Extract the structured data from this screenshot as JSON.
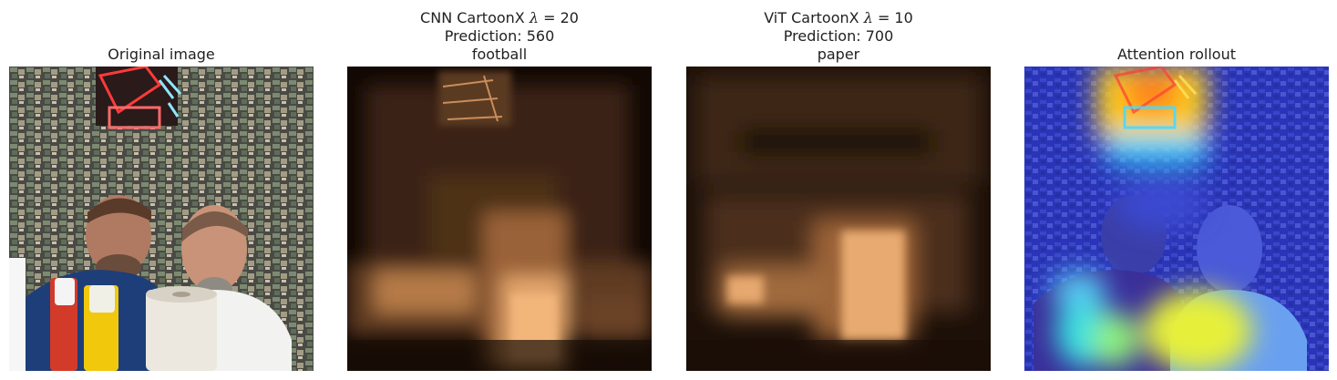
{
  "panels": [
    {
      "id": "original",
      "title_lines": [
        "Original image"
      ],
      "image": "photo-two-men-at-table",
      "colormap": "none"
    },
    {
      "id": "cnn",
      "title_lines": [
        "CNN CartoonX ",
        "Prediction: 560",
        "football"
      ],
      "lambda_symbol": "λ",
      "lambda_value": "= 20",
      "image": "cnn-cartoonx-explanation-map",
      "colormap": "copper"
    },
    {
      "id": "vit",
      "title_lines": [
        "ViT CartoonX ",
        "Prediction: 700",
        "paper"
      ],
      "lambda_symbol": "λ",
      "lambda_value": "= 10",
      "image": "vit-cartoonx-explanation-map",
      "colormap": "copper"
    },
    {
      "id": "rollout",
      "title_lines": [
        "Attention rollout"
      ],
      "image": "attention-rollout-heatmap-overlay",
      "colormap": "jet"
    }
  ],
  "colors": {
    "copper_dark": "#000000",
    "copper_light": "#ffc77f",
    "jet_low": "#2a2aff",
    "jet_high": "#ffe12a",
    "background": "#ffffff"
  }
}
